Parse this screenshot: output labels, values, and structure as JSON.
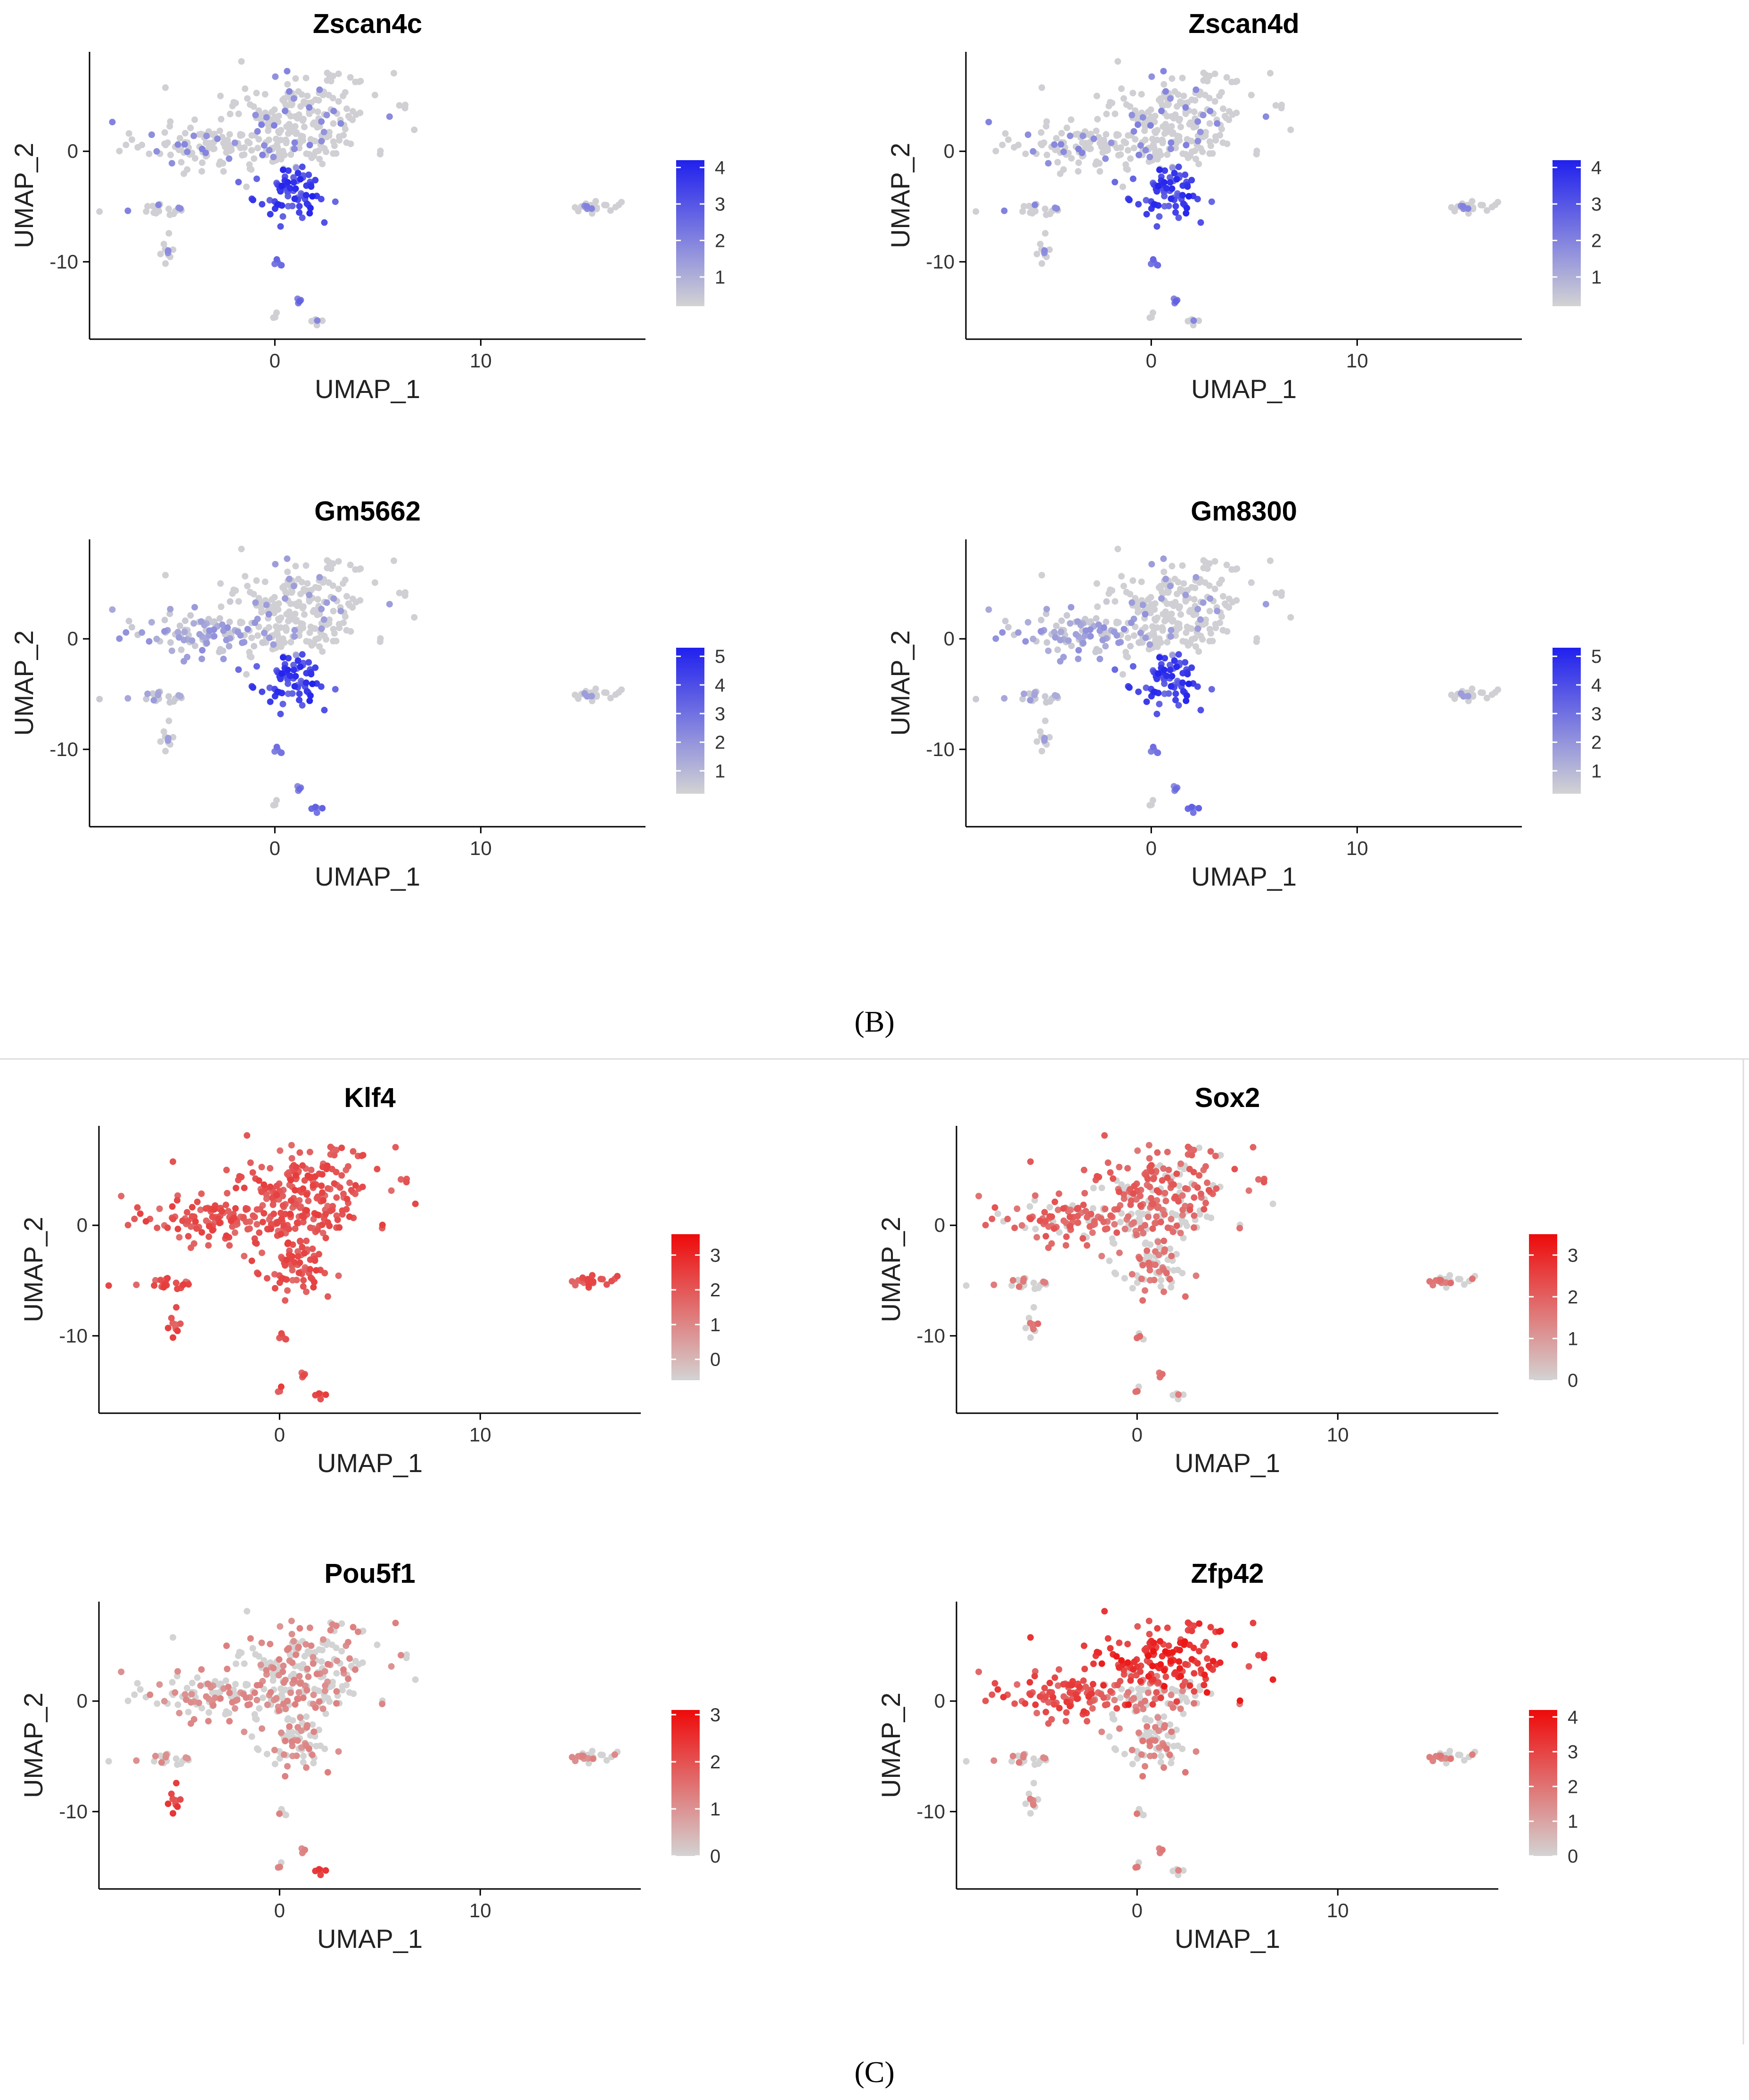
{
  "figure": {
    "panel_labels": [
      "(B)",
      "(C)"
    ],
    "colors": {
      "low": "#d3d3d3",
      "blue_high": "#2020ee",
      "red_high": "#ee0a0a",
      "axis": "#000000",
      "separator": "#dddddd"
    }
  },
  "chart_data": [
    {
      "type": "scatter",
      "title": "Zscan4c",
      "group": "B",
      "xlabel": "UMAP_1",
      "ylabel": "UMAP_2",
      "xlim": [
        -9,
        18
      ],
      "ylim": [
        -17,
        9
      ],
      "xticks": [
        0,
        10
      ],
      "yticks": [
        0,
        -10
      ],
      "color_scale": [
        "#d3d3d3",
        "#2020ee"
      ],
      "legend_ticks": [
        1,
        2,
        3,
        4
      ],
      "legend_range": [
        0.2,
        4.2
      ],
      "expression_pattern": "bottom-lobe"
    },
    {
      "type": "scatter",
      "title": "Zscan4d",
      "group": "B",
      "xlabel": "UMAP_1",
      "ylabel": "UMAP_2",
      "xlim": [
        -9,
        18
      ],
      "ylim": [
        -17,
        9
      ],
      "xticks": [
        0,
        10
      ],
      "yticks": [
        0,
        -10
      ],
      "color_scale": [
        "#d3d3d3",
        "#2020ee"
      ],
      "legend_ticks": [
        1,
        2,
        3,
        4
      ],
      "legend_range": [
        0.2,
        4.2
      ],
      "expression_pattern": "bottom-lobe"
    },
    {
      "type": "scatter",
      "title": "Gm5662",
      "group": "B",
      "xlabel": "UMAP_1",
      "ylabel": "UMAP_2",
      "xlim": [
        -9,
        18
      ],
      "ylim": [
        -17,
        9
      ],
      "xticks": [
        0,
        10
      ],
      "yticks": [
        0,
        -10
      ],
      "color_scale": [
        "#d3d3d3",
        "#2020ee"
      ],
      "legend_ticks": [
        1,
        2,
        3,
        4,
        5
      ],
      "legend_range": [
        0.2,
        5.3
      ],
      "expression_pattern": "bottom-lobe-left"
    },
    {
      "type": "scatter",
      "title": "Gm8300",
      "group": "B",
      "xlabel": "UMAP_1",
      "ylabel": "UMAP_2",
      "xlim": [
        -9,
        18
      ],
      "ylim": [
        -17,
        9
      ],
      "xticks": [
        0,
        10
      ],
      "yticks": [
        0,
        -10
      ],
      "color_scale": [
        "#d3d3d3",
        "#2020ee"
      ],
      "legend_ticks": [
        1,
        2,
        3,
        4,
        5
      ],
      "legend_range": [
        0.2,
        5.3
      ],
      "expression_pattern": "bottom-lobe-left"
    },
    {
      "type": "scatter",
      "title": "Klf4",
      "group": "C",
      "xlabel": "UMAP_1",
      "ylabel": "UMAP_2",
      "xlim": [
        -9,
        18
      ],
      "ylim": [
        -17,
        9
      ],
      "xticks": [
        0,
        10
      ],
      "yticks": [
        0,
        -10
      ],
      "color_scale": [
        "#d3d3d3",
        "#ee0a0a"
      ],
      "legend_ticks": [
        0,
        1,
        2,
        3
      ],
      "legend_range": [
        -0.6,
        3.6
      ],
      "expression_pattern": "uniform-high"
    },
    {
      "type": "scatter",
      "title": "Sox2",
      "group": "C",
      "xlabel": "UMAP_1",
      "ylabel": "UMAP_2",
      "xlim": [
        -9,
        18
      ],
      "ylim": [
        -17,
        9
      ],
      "xticks": [
        0,
        10
      ],
      "yticks": [
        0,
        -10
      ],
      "color_scale": [
        "#d3d3d3",
        "#ee0a0a"
      ],
      "legend_ticks": [
        0,
        1,
        2,
        3
      ],
      "legend_range": [
        0,
        3.5
      ],
      "expression_pattern": "mixed"
    },
    {
      "type": "scatter",
      "title": "Pou5f1",
      "group": "C",
      "xlabel": "UMAP_1",
      "ylabel": "UMAP_2",
      "xlim": [
        -9,
        18
      ],
      "ylim": [
        -17,
        9
      ],
      "xticks": [
        0,
        10
      ],
      "yticks": [
        0,
        -10
      ],
      "color_scale": [
        "#d3d3d3",
        "#ee0a0a"
      ],
      "legend_ticks": [
        0,
        1,
        2,
        3
      ],
      "legend_range": [
        0,
        3.1
      ],
      "expression_pattern": "mixed-low"
    },
    {
      "type": "scatter",
      "title": "Zfp42",
      "group": "C",
      "xlabel": "UMAP_1",
      "ylabel": "UMAP_2",
      "xlim": [
        -9,
        18
      ],
      "ylim": [
        -17,
        9
      ],
      "xticks": [
        0,
        10
      ],
      "yticks": [
        0,
        -10
      ],
      "color_scale": [
        "#d3d3d3",
        "#ee0a0a"
      ],
      "legend_ticks": [
        0,
        1,
        2,
        3,
        4
      ],
      "legend_range": [
        0,
        4.2
      ],
      "expression_pattern": "top-high"
    }
  ]
}
